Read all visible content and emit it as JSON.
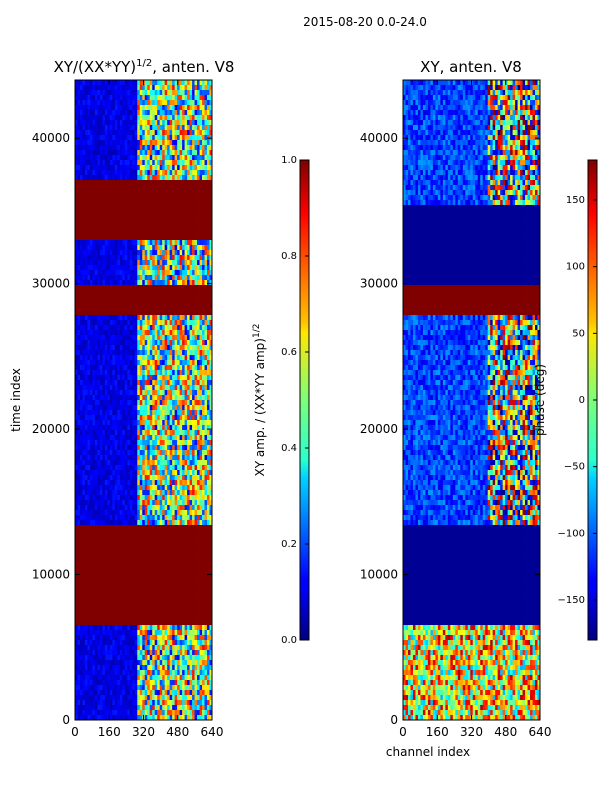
{
  "suptitle": "2015-08-20 0.0-24.0",
  "chart_data": [
    {
      "type": "heatmap",
      "title_prefix": "XY/(XX*YY)",
      "title_exp": "1/2",
      "title_suffix": ", anten. V8",
      "xlabel": "",
      "ylabel": "time index",
      "xlim": [
        0,
        640
      ],
      "ylim": [
        0,
        44000
      ],
      "xticks": [
        "0",
        "160",
        "320",
        "480",
        "640"
      ],
      "yticks": [
        "0",
        "10000",
        "20000",
        "30000",
        "40000"
      ],
      "colorbar": {
        "label_main": "XY amp. / (XX*YY amp)",
        "label_exp": "1/2",
        "range": [
          0.0,
          1.0
        ],
        "ticks": [
          "0.0",
          "0.2",
          "0.4",
          "0.6",
          "0.8",
          "1.0"
        ]
      },
      "saturated_bands": [
        [
          6500,
          13500
        ],
        [
          27700,
          29900
        ],
        [
          33000,
          35300
        ],
        [
          35500,
          37200
        ]
      ],
      "active_channel_range": [
        300,
        640
      ]
    },
    {
      "type": "heatmap",
      "title": "XY, anten. V8",
      "xlabel": "channel index",
      "ylabel": "",
      "xlim": [
        0,
        640
      ],
      "ylim": [
        0,
        44000
      ],
      "xticks": [
        "0",
        "160",
        "320",
        "480",
        "640"
      ],
      "yticks": [
        "0",
        "10000",
        "20000",
        "30000",
        "40000"
      ],
      "colorbar": {
        "label": "phase (deg)",
        "range": [
          -180,
          180
        ],
        "ticks": [
          "−150",
          "−100",
          "−50",
          "0",
          "50",
          "100",
          "150"
        ]
      },
      "low_bands": [
        [
          6500,
          13500
        ],
        [
          30000,
          35500
        ]
      ],
      "saturated_bands": [
        [
          27800,
          29800
        ]
      ],
      "active_channel_range": [
        400,
        640
      ]
    }
  ]
}
